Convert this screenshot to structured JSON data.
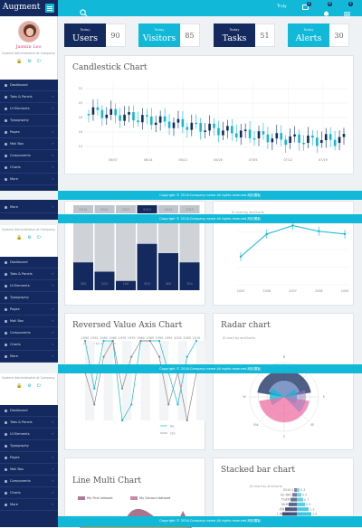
{
  "brand": "Augment",
  "topbar": {
    "user": "Truly",
    "badges": [
      "4",
      "8",
      "4"
    ]
  },
  "profile": {
    "name": "Jasmin Leo",
    "role": "System Administrator at Company"
  },
  "nav": [
    "Dashboard",
    "Tabs & Panels",
    "UI Elements",
    "Typography",
    "Pages",
    "Mail Box",
    "Components",
    "Charts",
    "More"
  ],
  "more_label": "More",
  "stats": [
    {
      "today": "Today",
      "label": "Users",
      "value": "90",
      "color": "#142a5e"
    },
    {
      "today": "Today",
      "label": "Visitors",
      "value": "85",
      "color": "#11b8d8"
    },
    {
      "today": "Today",
      "label": "Tasks",
      "value": "51",
      "color": "#142a5e"
    },
    {
      "today": "Today",
      "label": "Alerts",
      "value": "30",
      "color": "#11b8d8"
    }
  ],
  "footer": "Copyright © 2016.Company name All rights reserved.网页模板",
  "panels": {
    "candlestick": "Candlestick Chart",
    "reversed": "Reversed Value Axis Chart",
    "radar": "Radar chart",
    "line_multi": "Line Multi Chart",
    "stacked": "Stacked bar chart"
  },
  "credits": "JS chart by amCharts",
  "colors": {
    "navy": "#142a5e",
    "cyan": "#11b8d8",
    "pink": "#e0457b"
  },
  "chart_data": [
    {
      "type": "candlestick",
      "title": "Candlestick Chart",
      "x_ticks": [
        "06/07",
        "06/14",
        "06/21",
        "06/28",
        "07/05",
        "07/12",
        "07/19"
      ],
      "y_ticks": [
        "22",
        "20",
        "18",
        "16",
        "14"
      ],
      "ylim": [
        13,
        23
      ]
    },
    {
      "type": "bar",
      "categories": [
        "2013",
        "2011",
        "2012",
        "2013",
        "2014",
        "2015"
      ],
      "values": [
        300,
        200,
        100,
        500,
        400,
        300
      ],
      "ylim": [
        0,
        800
      ]
    },
    {
      "type": "line",
      "x": [
        "2005",
        "2006",
        "2007",
        "2008",
        "2009"
      ],
      "values": [
        20,
        28,
        31,
        29,
        28
      ]
    },
    {
      "type": "line",
      "title": "Reversed Value Axis Chart",
      "categories": [
        "1950",
        "1955",
        "1960",
        "1965",
        "1970",
        "1975",
        "1980",
        "1985",
        "1990",
        "1995",
        "2000",
        "2005",
        "2010"
      ],
      "series": [
        {
          "name": "Ita",
          "values": [
            1,
            4,
            1,
            1,
            6,
            5,
            1,
            1,
            1,
            3,
            5,
            2,
            1
          ]
        },
        {
          "name": "Chi",
          "values": [
            3,
            5,
            2,
            1,
            4,
            2,
            1,
            1,
            2,
            5,
            3,
            6,
            3
          ]
        }
      ]
    },
    {
      "type": "radar",
      "title": "Radar chart",
      "axes": [
        "N",
        "NE",
        "E",
        "SE",
        "S",
        "SW",
        "W",
        "NW"
      ]
    },
    {
      "type": "line",
      "title": "Line Multi Chart",
      "series": [
        {
          "name": "My First dataset"
        },
        {
          "name": "My Second dataset"
        }
      ]
    },
    {
      "type": "bar",
      "title": "Stacked bar chart",
      "categories": [
        "85+",
        "80-54",
        "75-79",
        "70-74",
        "65-69",
        "60-64",
        "55-59",
        "50-54"
      ],
      "values": [
        0.3,
        0.5,
        0.7,
        0.9,
        1.3,
        1.6,
        1.8,
        2.0
      ]
    }
  ]
}
